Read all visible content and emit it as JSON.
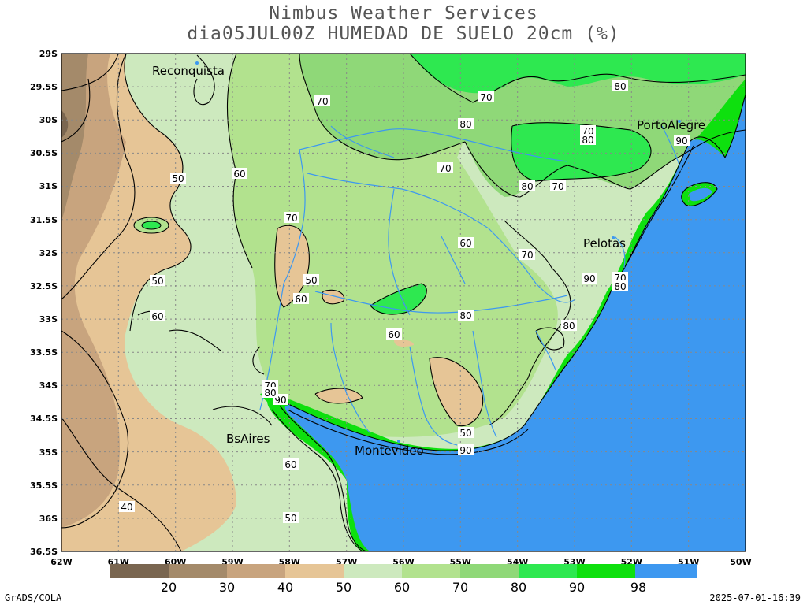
{
  "header": {
    "line1": "Nimbus Weather Services",
    "line2": "dia05JUL00Z HUMEDAD DE SUELO 20cm (%)"
  },
  "footer": {
    "left": "GrADS/COLA",
    "right": "2025-07-01-16:39"
  },
  "map": {
    "lat_labels": [
      "29S",
      "29.5S",
      "30S",
      "30.5S",
      "31S",
      "31.5S",
      "32S",
      "32.5S",
      "33S",
      "33.5S",
      "34S",
      "34.5S",
      "35S",
      "35.5S",
      "36S",
      "36.5S"
    ],
    "lon_labels": [
      "62W",
      "61W",
      "60W",
      "59W",
      "58W",
      "57W",
      "56W",
      "55W",
      "54W",
      "53W",
      "52W",
      "51W",
      "50W"
    ],
    "cities": [
      "Reconquista",
      "PortoAlegre",
      "Pelotas",
      "BsAires",
      "Montevideo"
    ],
    "contour_labels": [
      "70",
      "70",
      "80",
      "70",
      "70",
      "80",
      "80",
      "70",
      "80",
      "70",
      "90",
      "50",
      "60",
      "70",
      "50",
      "60",
      "60",
      "70",
      "80",
      "90",
      "60",
      "80",
      "90",
      "70",
      "80",
      "80",
      "50",
      "90",
      "40",
      "50",
      "60",
      "60",
      "50"
    ]
  },
  "colorbar": {
    "labels": [
      "20",
      "30",
      "40",
      "50",
      "60",
      "70",
      "80",
      "90",
      "98"
    ],
    "colors": [
      "#7a6650",
      "#a48a6a",
      "#c8a47e",
      "#e6c596",
      "#cde9be",
      "#b2e28e",
      "#8fd878",
      "#2ee850",
      "#0ee00e",
      "#3d98f0"
    ]
  },
  "palette": {
    "ocean": "#3d98f0",
    "wet90": "#0ee00e",
    "wet80": "#2ee850",
    "mid70": "#8fd878",
    "mid60": "#b2e28e",
    "mid50": "#cde9be",
    "dry40": "#e6c596",
    "dry30": "#c8a47e",
    "dry20": "#a48a6a",
    "dry10": "#7a6650",
    "river": "#3d98f0"
  }
}
